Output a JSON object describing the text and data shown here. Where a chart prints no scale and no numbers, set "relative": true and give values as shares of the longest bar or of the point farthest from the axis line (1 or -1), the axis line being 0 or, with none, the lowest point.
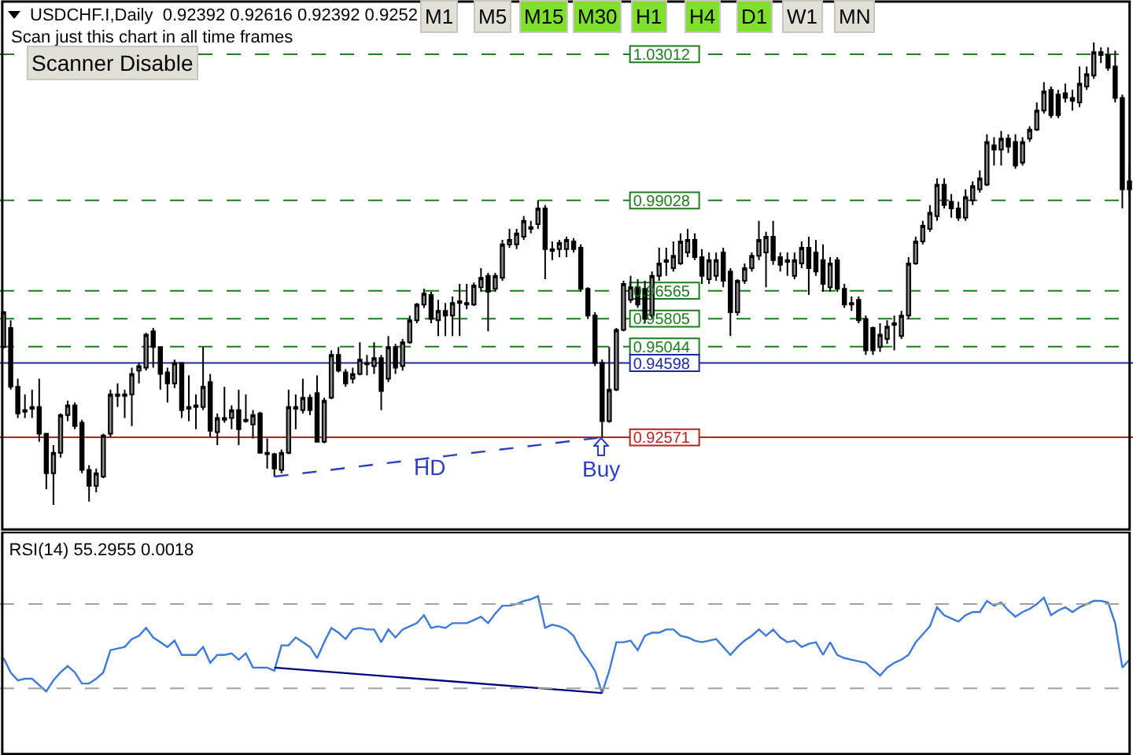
{
  "chart_data": [
    {
      "type": "candlestick",
      "categories": [
        null,
        null,
        null,
        null,
        null,
        null,
        null,
        null,
        null,
        null,
        null,
        null,
        null,
        null,
        null,
        null,
        null,
        null,
        null,
        null,
        null,
        null,
        null,
        null,
        null,
        null,
        null,
        null,
        null,
        null,
        null,
        null,
        null,
        null,
        null,
        null,
        null,
        null,
        null,
        null,
        null,
        null,
        null,
        null,
        null,
        null,
        null,
        null,
        null,
        null,
        null,
        null,
        null,
        null,
        null,
        null,
        null,
        null,
        null,
        null,
        null,
        null,
        null,
        null,
        null,
        null,
        null,
        null,
        null,
        null,
        null,
        null,
        null,
        null,
        null,
        null,
        null,
        null,
        null,
        null,
        null,
        null,
        null,
        null,
        null,
        null,
        null,
        null,
        null,
        null,
        null,
        null,
        null,
        null,
        null,
        null,
        null,
        null,
        null,
        null,
        null,
        null,
        null,
        null,
        null,
        null,
        null,
        null,
        null,
        null,
        null,
        null,
        null,
        null,
        null,
        null,
        null,
        null,
        null,
        null,
        null,
        null,
        null,
        null,
        null,
        null,
        null,
        null,
        null,
        null,
        null,
        null,
        null,
        null,
        null,
        null,
        null,
        null,
        null,
        null,
        null,
        null,
        null,
        null,
        null,
        null,
        null,
        null,
        null,
        null,
        null,
        null,
        null,
        null,
        null,
        null,
        null,
        null,
        null
      ],
      "ohlc": [
        [
          0.9503,
          0.9602,
          0.9499,
          0.9598
        ],
        [
          0.9555,
          0.9576,
          0.9387,
          0.9395
        ],
        [
          0.9395,
          0.9417,
          0.931,
          0.9322
        ],
        [
          0.9331,
          0.9374,
          0.931,
          0.9327
        ],
        [
          0.9335,
          0.9387,
          0.931,
          0.934
        ],
        [
          0.934,
          0.9417,
          0.9245,
          0.9267
        ],
        [
          0.9267,
          0.9267,
          0.9116,
          0.9159
        ],
        [
          0.9159,
          0.9236,
          0.9073,
          0.9215
        ],
        [
          0.9215,
          0.9322,
          0.9202,
          0.9318
        ],
        [
          0.9318,
          0.9357,
          0.9301,
          0.9344
        ],
        [
          0.9344,
          0.9352,
          0.9279,
          0.9288
        ],
        [
          0.9297,
          0.9305,
          0.9159,
          0.9168
        ],
        [
          0.9168,
          0.9181,
          0.9082,
          0.9125
        ],
        [
          0.9125,
          0.9172,
          0.9107,
          0.9159
        ],
        [
          0.915,
          0.9267,
          0.9146,
          0.9262
        ],
        [
          0.9267,
          0.9387,
          0.9258,
          0.9374
        ],
        [
          0.937,
          0.9404,
          0.934,
          0.9374
        ],
        [
          0.9374,
          0.9387,
          0.931,
          0.937
        ],
        [
          0.9374,
          0.9447,
          0.9288,
          0.943
        ],
        [
          0.9439,
          0.946,
          0.9404,
          0.9451
        ],
        [
          0.9447,
          0.9542,
          0.9439,
          0.9537
        ],
        [
          0.9546,
          0.9555,
          0.9447,
          0.9503
        ],
        [
          0.9503,
          0.9503,
          0.9387,
          0.943
        ],
        [
          0.9434,
          0.9447,
          0.9352,
          0.9404
        ],
        [
          0.9404,
          0.9469,
          0.9391,
          0.946
        ],
        [
          0.946,
          0.946,
          0.931,
          0.9331
        ],
        [
          0.9335,
          0.9426,
          0.9301,
          0.934
        ],
        [
          0.934,
          0.9374,
          0.9279,
          0.9344
        ],
        [
          0.934,
          0.9503,
          0.9331,
          0.9395
        ],
        [
          0.9408,
          0.943,
          0.9258,
          0.9275
        ],
        [
          0.9271,
          0.9322,
          0.9236,
          0.931
        ],
        [
          0.9305,
          0.9395,
          0.9297,
          0.931
        ],
        [
          0.931,
          0.9344,
          0.9279,
          0.9331
        ],
        [
          0.9331,
          0.9387,
          0.9236,
          0.9279
        ],
        [
          0.9301,
          0.9374,
          0.9297,
          0.9305
        ],
        [
          0.9292,
          0.9331,
          0.9254,
          0.9318
        ],
        [
          0.9322,
          0.9327,
          0.9215,
          0.9215
        ],
        [
          0.9215,
          0.9254,
          0.9172,
          0.9211
        ],
        [
          0.9211,
          0.9215,
          0.915,
          0.9172
        ],
        [
          0.9168,
          0.9224,
          0.9159,
          0.9215
        ],
        [
          0.9215,
          0.9387,
          0.9211,
          0.934
        ],
        [
          0.9335,
          0.9374,
          0.9279,
          0.934
        ],
        [
          0.9331,
          0.9417,
          0.9322,
          0.9365
        ],
        [
          0.9365,
          0.9374,
          0.9318,
          0.9331
        ],
        [
          0.9378,
          0.9426,
          0.9245,
          0.9245
        ],
        [
          0.9245,
          0.9365,
          0.9241,
          0.9357
        ],
        [
          0.9365,
          0.9494,
          0.9361,
          0.9482
        ],
        [
          0.9482,
          0.9503,
          0.9434,
          0.9439
        ],
        [
          0.9434,
          0.9443,
          0.9395,
          0.9404
        ],
        [
          0.9417,
          0.9447,
          0.9404,
          0.943
        ],
        [
          0.943,
          0.9516,
          0.9426,
          0.9469
        ],
        [
          0.9456,
          0.9482,
          0.9426,
          0.946
        ],
        [
          0.9451,
          0.9516,
          0.943,
          0.9473
        ],
        [
          0.9473,
          0.9482,
          0.9331,
          0.9383
        ],
        [
          0.9417,
          0.9533,
          0.9408,
          0.9503
        ],
        [
          0.9503,
          0.9512,
          0.943,
          0.9447
        ],
        [
          0.9451,
          0.9525,
          0.9439,
          0.9516
        ],
        [
          0.9516,
          0.9589,
          0.9512,
          0.9576
        ],
        [
          0.9576,
          0.9623,
          0.9568,
          0.9619
        ],
        [
          0.9619,
          0.9662,
          0.961,
          0.9649
        ],
        [
          0.9645,
          0.9654,
          0.9568,
          0.958
        ],
        [
          0.9576,
          0.9632,
          0.9533,
          0.9602
        ],
        [
          0.9602,
          0.9623,
          0.9533,
          0.9589
        ],
        [
          0.9589,
          0.9641,
          0.9533,
          0.9623
        ],
        [
          0.9623,
          0.9675,
          0.9533,
          0.9628
        ],
        [
          0.9623,
          0.9675,
          0.9606,
          0.9619
        ],
        [
          0.9619,
          0.9679,
          0.9615,
          0.9671
        ],
        [
          0.9666,
          0.9718,
          0.9654,
          0.9692
        ],
        [
          0.9697,
          0.9705,
          0.9546,
          0.9654
        ],
        [
          0.9662,
          0.9705,
          0.9654,
          0.9697
        ],
        [
          0.9692,
          0.9795,
          0.9684,
          0.9783
        ],
        [
          0.9783,
          0.9825,
          0.9774,
          0.9795
        ],
        [
          0.9783,
          0.9825,
          0.977,
          0.9813
        ],
        [
          0.9804,
          0.986,
          0.9795,
          0.9847
        ],
        [
          0.9825,
          0.9847,
          0.9813,
          0.983
        ],
        [
          0.9838,
          0.9903,
          0.9825,
          0.9881
        ],
        [
          0.9881,
          0.989,
          0.9688,
          0.977
        ],
        [
          0.9765,
          0.9791,
          0.974,
          0.977
        ],
        [
          0.977,
          0.9795,
          0.9748,
          0.9787
        ],
        [
          0.977,
          0.9804,
          0.9748,
          0.9795
        ],
        [
          0.9791,
          0.98,
          0.9761,
          0.977
        ],
        [
          0.9774,
          0.9783,
          0.9654,
          0.9662
        ],
        [
          0.9662,
          0.9666,
          0.958,
          0.9589
        ],
        [
          0.9589,
          0.9598,
          0.9451,
          0.946
        ],
        [
          0.946,
          0.9469,
          0.9257,
          0.9301
        ],
        [
          0.9301,
          0.9503,
          0.9297,
          0.9387
        ],
        [
          0.9387,
          0.9555,
          0.9383,
          0.955
        ],
        [
          0.955,
          0.9684,
          0.9546,
          0.9675
        ],
        [
          0.9632,
          0.9697,
          0.9623,
          0.9666
        ],
        [
          0.9666,
          0.9688,
          0.961,
          0.9619
        ],
        [
          0.9662,
          0.9684,
          0.9568,
          0.958
        ],
        [
          0.9589,
          0.9709,
          0.958,
          0.9697
        ],
        [
          0.9697,
          0.9774,
          0.9684,
          0.9731
        ],
        [
          0.9735,
          0.9774,
          0.9697,
          0.974
        ],
        [
          0.9718,
          0.9791,
          0.9709,
          0.9752
        ],
        [
          0.9731,
          0.9813,
          0.9727,
          0.9791
        ],
        [
          0.9761,
          0.9825,
          0.9748,
          0.9795
        ],
        [
          0.9795,
          0.9813,
          0.974,
          0.9748
        ],
        [
          0.9748,
          0.977,
          0.9675,
          0.9697
        ],
        [
          0.9688,
          0.9761,
          0.9675,
          0.974
        ],
        [
          0.9697,
          0.9761,
          0.9684,
          0.974
        ],
        [
          0.9761,
          0.9774,
          0.9666,
          0.9684
        ],
        [
          0.9709,
          0.9718,
          0.9533,
          0.9598
        ],
        [
          0.9598,
          0.9688,
          0.9589,
          0.9684
        ],
        [
          0.9684,
          0.9731,
          0.9675,
          0.9718
        ],
        [
          0.9718,
          0.9761,
          0.9709,
          0.9752
        ],
        [
          0.9752,
          0.9847,
          0.974,
          0.9795
        ],
        [
          0.9761,
          0.9817,
          0.9666,
          0.9804
        ],
        [
          0.9804,
          0.9847,
          0.9727,
          0.974
        ],
        [
          0.9748,
          0.9761,
          0.9709,
          0.9727
        ],
        [
          0.9735,
          0.9761,
          0.9697,
          0.974
        ],
        [
          0.9697,
          0.9761,
          0.9688,
          0.974
        ],
        [
          0.9731,
          0.9791,
          0.9718,
          0.9774
        ],
        [
          0.9774,
          0.9804,
          0.9645,
          0.9718
        ],
        [
          0.9761,
          0.9795,
          0.9697,
          0.9709
        ],
        [
          0.974,
          0.9783,
          0.9654,
          0.9675
        ],
        [
          0.9666,
          0.9748,
          0.9654,
          0.9731
        ],
        [
          0.974,
          0.9748,
          0.9654,
          0.9662
        ],
        [
          0.9662,
          0.9675,
          0.961,
          0.9619
        ],
        [
          0.9619,
          0.9641,
          0.9602,
          0.9623
        ],
        [
          0.9632,
          0.9641,
          0.9568,
          0.9576
        ],
        [
          0.958,
          0.9589,
          0.9482,
          0.9494
        ],
        [
          0.9555,
          0.9559,
          0.9482,
          0.9494
        ],
        [
          0.9503,
          0.9568,
          0.949,
          0.9537
        ],
        [
          0.9525,
          0.9576,
          0.9512,
          0.9559
        ],
        [
          0.9563,
          0.9589,
          0.9494,
          0.9568
        ],
        [
          0.9533,
          0.9602,
          0.9525,
          0.9589
        ],
        [
          0.9589,
          0.9748,
          0.958,
          0.9731
        ],
        [
          0.9731,
          0.9804,
          0.9727,
          0.9791
        ],
        [
          0.9791,
          0.9847,
          0.9783,
          0.9834
        ],
        [
          0.9825,
          0.989,
          0.9817,
          0.9869
        ],
        [
          0.986,
          0.9963,
          0.9847,
          0.9946
        ],
        [
          0.9946,
          0.9963,
          0.9881,
          0.989
        ],
        [
          0.9899,
          0.992,
          0.9856,
          0.9881
        ],
        [
          0.9881,
          0.9899,
          0.9847,
          0.9856
        ],
        [
          0.9856,
          0.9933,
          0.9847,
          0.9912
        ],
        [
          0.9903,
          0.9955,
          0.989,
          0.9942
        ],
        [
          0.9933,
          0.9985,
          0.9924,
          0.9963
        ],
        [
          0.9946,
          1.0083,
          0.9942,
          1.0062
        ],
        [
          1.0053,
          1.0075,
          0.9998,
          1.0041
        ],
        [
          1.0041,
          1.0092,
          0.9998,
          1.0071
        ],
        [
          1.0071,
          1.0083,
          1.0032,
          1.0049
        ],
        [
          1.0062,
          1.0083,
          0.9989,
          0.9998
        ],
        [
          1.0006,
          1.0075,
          0.9998,
          1.0062
        ],
        [
          1.0071,
          1.0105,
          1.0062,
          1.0096
        ],
        [
          1.0096,
          1.017,
          1.0092,
          1.0148
        ],
        [
          1.0148,
          1.0225,
          1.0139,
          1.02
        ],
        [
          1.0204,
          1.0213,
          1.0127,
          1.0135
        ],
        [
          1.0191,
          1.0204,
          1.0127,
          1.0135
        ],
        [
          1.0195,
          1.0221,
          1.017,
          1.0182
        ],
        [
          1.0182,
          1.0204,
          1.0148,
          1.0174
        ],
        [
          1.017,
          1.0268,
          1.0157,
          1.0221
        ],
        [
          1.0213,
          1.0268,
          1.0204,
          1.0247
        ],
        [
          1.0243,
          1.0333,
          1.0234,
          1.0307
        ],
        [
          1.0307,
          1.032,
          1.0277,
          1.0299
        ],
        [
          1.0299,
          1.032,
          1.0256,
          1.0264
        ],
        [
          1.0268,
          1.0311,
          1.017,
          1.0182
        ],
        [
          1.0182,
          1.0191,
          0.9881,
          0.9933
        ],
        [
          0.9933,
          0.9998,
          0.9912,
          0.9955
        ]
      ],
      "series": [
        {
          "type": "line",
          "color": "#2b3fc0",
          "line_style": "dashed",
          "values": [
            null,
            null,
            null,
            null,
            null,
            null,
            null,
            null,
            null,
            null,
            null,
            null,
            null,
            null,
            null,
            null,
            null,
            null,
            null,
            null,
            null,
            null,
            null,
            null,
            null,
            null,
            null,
            null,
            null,
            null,
            null,
            null,
            null,
            null,
            null,
            null,
            null,
            null,
            0.915,
            null,
            null,
            null,
            null,
            null,
            null,
            null,
            null,
            null,
            null,
            null,
            null,
            null,
            null,
            null,
            null,
            null,
            null,
            null,
            null,
            null,
            null,
            null,
            null,
            null,
            null,
            null,
            null,
            null,
            null,
            null,
            null,
            null,
            null,
            null,
            null,
            null,
            null,
            null,
            null,
            null,
            null,
            null,
            null,
            null,
            0.9257,
            null,
            null,
            null,
            null,
            null,
            null,
            null,
            null,
            null,
            null,
            null,
            null,
            null,
            null,
            null,
            null,
            null,
            null,
            null,
            null,
            null,
            null,
            null,
            null,
            null,
            null,
            null,
            null,
            null,
            null,
            null,
            null,
            null,
            null,
            null,
            null,
            null,
            null,
            null,
            null,
            null,
            null,
            null,
            null,
            null,
            null,
            null,
            null,
            null,
            null,
            null,
            null,
            null,
            null,
            null,
            null,
            null,
            null,
            null,
            null,
            null,
            null,
            null,
            null,
            null,
            null,
            null,
            null,
            null,
            null,
            null,
            null,
            null,
            null
          ]
        }
      ],
      "ylim": [
        0.9,
        1.0449
      ],
      "yticks": [
        1.03012,
        0.99028,
        0.96565,
        0.95805,
        0.95044,
        0.94598,
        0.92571
      ],
      "tick_labels": "y",
      "ref_lines": [
        {
          "axis": "y",
          "value": 1.03012,
          "color": "#1e7b1e",
          "line_style": "dashed"
        },
        {
          "axis": "y",
          "value": 0.99028,
          "color": "#1e7b1e",
          "line_style": "dashed"
        },
        {
          "axis": "y",
          "value": 0.96565,
          "color": "#1e7b1e",
          "line_style": "dashed"
        },
        {
          "axis": "y",
          "value": 0.95805,
          "color": "#1e7b1e",
          "line_style": "dashed"
        },
        {
          "axis": "y",
          "value": 0.95044,
          "color": "#1e7b1e",
          "line_style": "dashed"
        },
        {
          "axis": "y",
          "value": 0.94598,
          "color": "#1c2aa0"
        },
        {
          "axis": "y",
          "value": 0.92571,
          "color": "#b22222",
          "line_style": "solid"
        }
      ],
      "annotations": [
        "USDCHF.I,Daily  0.92392 0.92616 0.92392 0.9252",
        "Scan just this chart in all time frames",
        "Scanner Disable",
        "M1",
        "M5",
        "M15",
        "M30",
        "H1",
        "H4",
        "D1",
        "W1",
        "MN",
        "HD",
        "Buy"
      ]
    },
    {
      "type": "line",
      "title": "RSI(14) 55.2955 0.0018",
      "relative": true,
      "tick_labels": false,
      "categories": [
        null,
        null,
        null,
        null,
        null,
        null,
        null,
        null,
        null,
        null,
        null,
        null,
        null,
        null,
        null,
        null,
        null,
        null,
        null,
        null,
        null,
        null,
        null,
        null,
        null,
        null,
        null,
        null,
        null,
        null,
        null,
        null,
        null,
        null,
        null,
        null,
        null,
        null,
        null,
        null,
        null,
        null,
        null,
        null,
        null,
        null,
        null,
        null,
        null,
        null,
        null,
        null,
        null,
        null,
        null,
        null,
        null,
        null,
        null,
        null,
        null,
        null,
        null,
        null,
        null,
        null,
        null,
        null,
        null,
        null,
        null,
        null,
        null,
        null,
        null,
        null,
        null,
        null,
        null,
        null,
        null,
        null,
        null,
        null,
        null,
        null,
        null,
        null,
        null,
        null,
        null,
        null,
        null,
        null,
        null,
        null,
        null,
        null,
        null,
        null,
        null,
        null,
        null,
        null,
        null,
        null,
        null,
        null,
        null,
        null,
        null,
        null,
        null,
        null,
        null,
        null,
        null,
        null,
        null,
        null,
        null,
        null,
        null,
        null,
        null,
        null,
        null,
        null,
        null,
        null,
        null,
        null,
        null,
        null,
        null,
        null,
        null,
        null,
        null,
        null,
        null,
        null,
        null,
        null,
        null,
        null,
        null,
        null,
        null,
        null,
        null,
        null,
        null,
        null,
        null,
        null,
        null,
        null,
        null
      ],
      "series": [
        {
          "color": "#3d7ad6",
          "values": [
            0.61,
            0.52,
            0.47,
            0.48,
            0.48,
            0.44,
            0.4,
            0.47,
            0.52,
            0.56,
            0.52,
            0.45,
            0.45,
            0.48,
            0.52,
            0.66,
            0.67,
            0.68,
            0.73,
            0.75,
            0.8,
            0.74,
            0.71,
            0.68,
            0.72,
            0.63,
            0.63,
            0.63,
            0.68,
            0.58,
            0.63,
            0.63,
            0.64,
            0.6,
            0.64,
            0.55,
            0.55,
            0.55,
            0.53,
            0.69,
            0.69,
            0.74,
            0.71,
            0.68,
            0.61,
            0.71,
            0.8,
            0.77,
            0.73,
            0.79,
            0.8,
            0.79,
            0.79,
            0.71,
            0.79,
            0.74,
            0.79,
            0.81,
            0.83,
            0.88,
            0.8,
            0.81,
            0.8,
            0.83,
            0.83,
            0.83,
            0.85,
            0.87,
            0.83,
            0.89,
            0.94,
            0.94,
            0.95,
            0.97,
            0.98,
            1,
            0.8,
            0.82,
            0.81,
            0.79,
            0.75,
            0.66,
            0.6,
            0.53,
            0.39,
            0.53,
            0.71,
            0.71,
            0.72,
            0.66,
            0.75,
            0.77,
            0.77,
            0.79,
            0.79,
            0.75,
            0.74,
            0.72,
            0.71,
            0.72,
            0.73,
            0.68,
            0.63,
            0.68,
            0.72,
            0.75,
            0.79,
            0.75,
            0.79,
            0.74,
            0.71,
            0.72,
            0.68,
            0.7,
            0.71,
            0.63,
            0.71,
            0.63,
            0.61,
            0.6,
            0.59,
            0.58,
            0.54,
            0.5,
            0.55,
            0.58,
            0.6,
            0.63,
            0.71,
            0.76,
            0.81,
            0.93,
            0.88,
            0.86,
            0.84,
            0.88,
            0.9,
            0.9,
            0.97,
            0.94,
            0.96,
            0.91,
            0.87,
            0.9,
            0.92,
            0.95,
            0.99,
            0.88,
            0.91,
            0.93,
            0.9,
            0.93,
            0.95,
            0.97,
            0.97,
            0.96,
            0.83,
            0.55,
            0.6
          ]
        },
        {
          "type": "line",
          "color": "#000080",
          "values": [
            null,
            null,
            null,
            null,
            null,
            null,
            null,
            null,
            null,
            null,
            null,
            null,
            null,
            null,
            null,
            null,
            null,
            null,
            null,
            null,
            null,
            null,
            null,
            null,
            null,
            null,
            null,
            null,
            null,
            null,
            null,
            null,
            null,
            null,
            null,
            null,
            null,
            null,
            0.55,
            null,
            null,
            null,
            null,
            null,
            null,
            null,
            null,
            null,
            null,
            null,
            null,
            null,
            null,
            null,
            null,
            null,
            null,
            null,
            null,
            null,
            null,
            null,
            null,
            null,
            null,
            null,
            null,
            null,
            null,
            null,
            null,
            null,
            null,
            null,
            null,
            null,
            null,
            null,
            null,
            null,
            null,
            null,
            null,
            null,
            0.39,
            null,
            null,
            null,
            null,
            null,
            null,
            null,
            null,
            null,
            null,
            null,
            null,
            null,
            null,
            null,
            null,
            null,
            null,
            null,
            null,
            null,
            null,
            null,
            null,
            null,
            null,
            null,
            null,
            null,
            null,
            null,
            null,
            null,
            null,
            null,
            null,
            null,
            null,
            null,
            null,
            null,
            null,
            null,
            null,
            null,
            null,
            null,
            null,
            null,
            null,
            null,
            null,
            null,
            null,
            null,
            null,
            null,
            null,
            null,
            null,
            null,
            null,
            null,
            null,
            null,
            null,
            null,
            null,
            null,
            null,
            null,
            null,
            null,
            null
          ]
        }
      ],
      "ref_lines": [
        {
          "axis": "y",
          "value": 0.95,
          "color": "#a0a0a0",
          "line_style": "dashed"
        },
        {
          "axis": "y",
          "value": 0.42,
          "color": "#a0a0a0",
          "line_style": "dashed"
        }
      ]
    }
  ]
}
